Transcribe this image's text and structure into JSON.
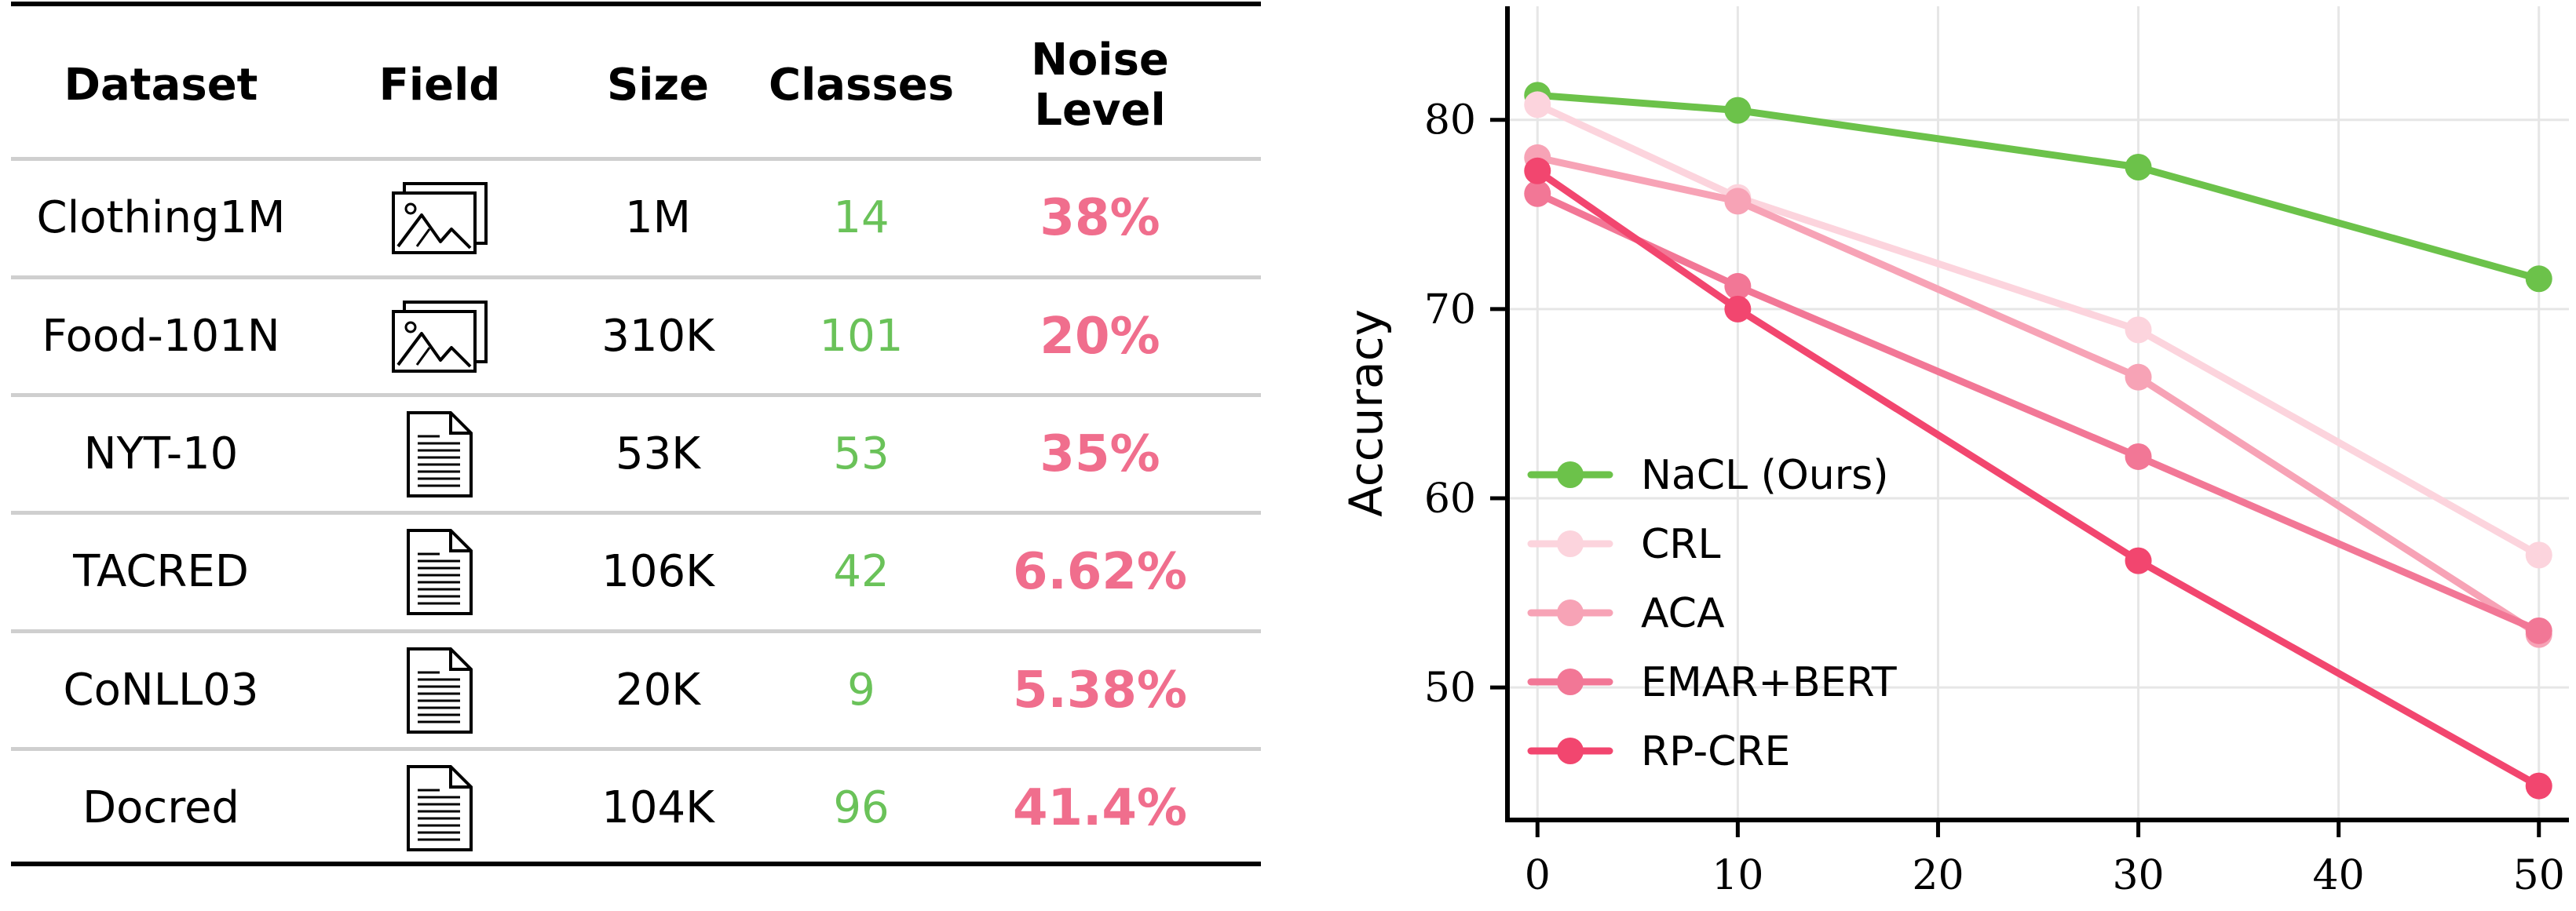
{
  "table": {
    "headers": [
      {
        "key": "dataset",
        "label": "Dataset"
      },
      {
        "key": "field",
        "label": "Field"
      },
      {
        "key": "size",
        "label": "Size"
      },
      {
        "key": "classes",
        "label": "Classes"
      },
      {
        "key": "noise",
        "label_line1": "Noise",
        "label_line2": "Level"
      }
    ],
    "rows": [
      {
        "dataset": "Clothing1M",
        "field_icon": "image-icon",
        "size": "1M",
        "classes": "14",
        "noise": "38%"
      },
      {
        "dataset": "Food-101N",
        "field_icon": "image-icon",
        "size": "310K",
        "classes": "101",
        "noise": "20%"
      },
      {
        "dataset": "NYT-10",
        "field_icon": "document-icon",
        "size": "53K",
        "classes": "53",
        "noise": "35%"
      },
      {
        "dataset": "TACRED",
        "field_icon": "document-icon",
        "size": "106K",
        "classes": "42",
        "noise": "6.62%"
      },
      {
        "dataset": "CoNLL03",
        "field_icon": "document-icon",
        "size": "20K",
        "classes": "9",
        "noise": "5.38%"
      },
      {
        "dataset": "Docred",
        "field_icon": "document-icon",
        "size": "104K",
        "classes": "96",
        "noise": "41.4%"
      }
    ],
    "colors": {
      "classes": "#6ac259",
      "noise": "#f06e8d"
    }
  },
  "chart_data": {
    "type": "line",
    "x": [
      0,
      10,
      30,
      50
    ],
    "xlabel": "",
    "ylabel": "Accuracy",
    "xlim": [
      -1.5,
      51.5
    ],
    "ylim": [
      43,
      86
    ],
    "xticks": [
      0,
      10,
      20,
      30,
      40,
      50
    ],
    "yticks": [
      50,
      60,
      70,
      80
    ],
    "grid": true,
    "legend_position": "lower-left",
    "series": [
      {
        "name": "NaCL (Ours)",
        "color": "#6cc24a",
        "values": [
          81.3,
          80.5,
          77.5,
          71.6
        ]
      },
      {
        "name": "CRL",
        "color": "#fcd4dd",
        "values": [
          80.8,
          75.9,
          68.9,
          57.0
        ]
      },
      {
        "name": "ACA",
        "color": "#f7a3b6",
        "values": [
          78.0,
          75.7,
          66.4,
          52.8
        ]
      },
      {
        "name": "EMAR+BERT",
        "color": "#f27796",
        "values": [
          76.1,
          71.2,
          62.2,
          53.0
        ]
      },
      {
        "name": "RP-CRE",
        "color": "#f2466f",
        "values": [
          77.3,
          70.0,
          56.7,
          44.8
        ]
      }
    ]
  }
}
